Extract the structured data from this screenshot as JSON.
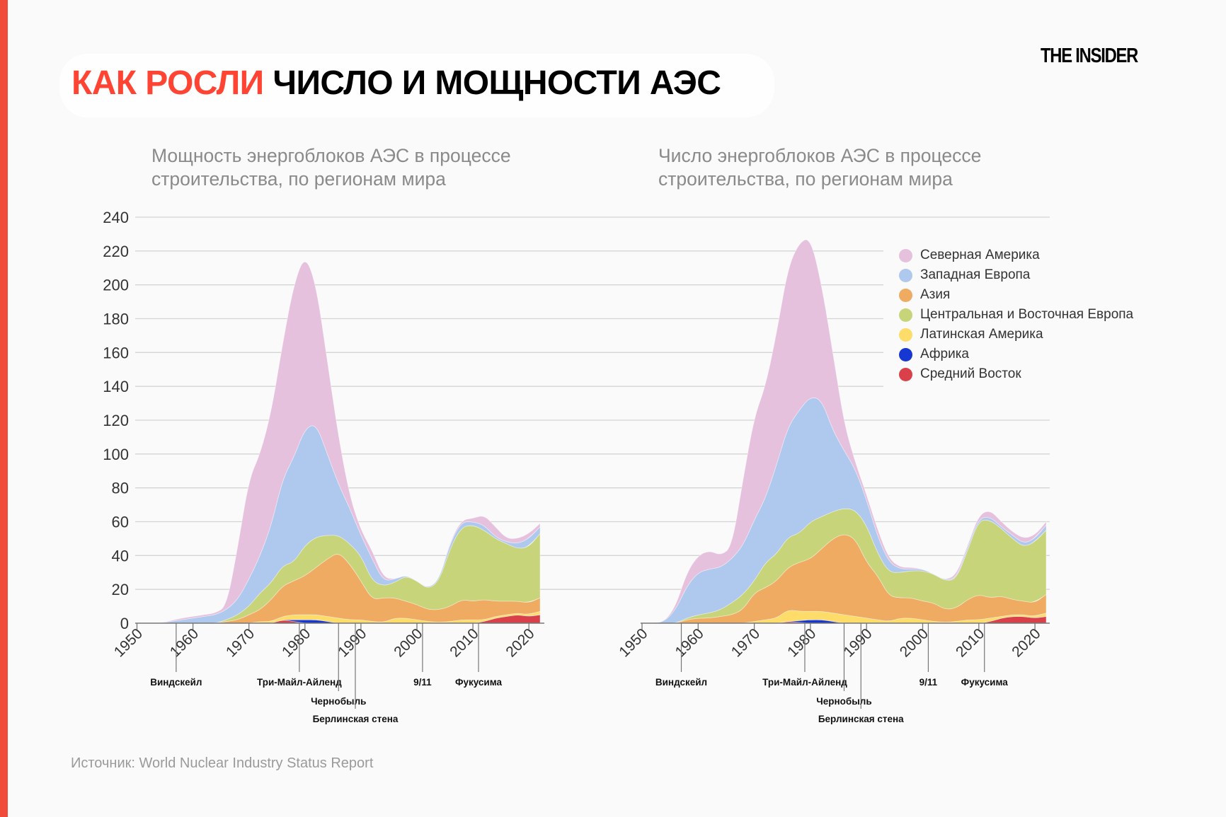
{
  "header": {
    "title_accent": "КАК РОСЛИ",
    "title_rest": "ЧИСЛО И МОЩНОСТИ АЭС",
    "logo": "THE INSIDER",
    "accent_color": "#ff4433"
  },
  "source": "Источник: World Nuclear Industry Status Report",
  "legend": {
    "items": [
      {
        "name": "Северная Америка",
        "color": "#e5c1dd"
      },
      {
        "name": "Западная Европа",
        "color": "#afc8ee"
      },
      {
        "name": "Азия",
        "color": "#f0ab62"
      },
      {
        "name": "Центральная и Восточная Европа",
        "color": "#c8d47a"
      },
      {
        "name": "Латинская Америка",
        "color": "#fddc6a"
      },
      {
        "name": "Африка",
        "color": "#1637d2"
      },
      {
        "name": "Средний Восток",
        "color": "#d9404a"
      }
    ]
  },
  "chart_data": [
    {
      "type": "area",
      "stacked": true,
      "title": "Мощность энергоблоков АЭС в процессе строительства, по регионам мира",
      "ylim": [
        0,
        240
      ],
      "yticks": [
        0,
        20,
        40,
        60,
        80,
        100,
        120,
        140,
        160,
        180,
        200,
        220,
        240
      ],
      "xticks": [
        1950,
        1960,
        1970,
        1980,
        1990,
        2000,
        2010,
        2020
      ],
      "grid": true,
      "legend_position": "right",
      "events": [
        {
          "year": 1957,
          "label": "Виндскейл",
          "row": 0
        },
        {
          "year": 1979,
          "label": "Три-Майл-Айленд",
          "row": 0
        },
        {
          "year": 1986,
          "label": "Чернобыль",
          "row": 1
        },
        {
          "year": 1989,
          "label": "Берлинская стена",
          "row": 2
        },
        {
          "year": 2001,
          "label": "9/11",
          "row": 0
        },
        {
          "year": 2011,
          "label": "Фукусима",
          "row": 0
        }
      ],
      "x": [
        1950,
        1952,
        1954,
        1956,
        1958,
        1960,
        1962,
        1964,
        1966,
        1968,
        1970,
        1972,
        1974,
        1976,
        1978,
        1980,
        1982,
        1984,
        1986,
        1988,
        1990,
        1992,
        1994,
        1996,
        1998,
        2000,
        2002,
        2004,
        2006,
        2008,
        2010,
        2012,
        2014,
        2016,
        2018,
        2020,
        2022
      ],
      "series": [
        {
          "name": "Средний Восток",
          "color": "#d9404a",
          "values": [
            0,
            0,
            0,
            0,
            0,
            0,
            0,
            0,
            0,
            0,
            0,
            0,
            0,
            2,
            1,
            0,
            0,
            0,
            0,
            0,
            0,
            0,
            0,
            0,
            0,
            0,
            0,
            0,
            0,
            0,
            0,
            1,
            3,
            4,
            5,
            4,
            5
          ]
        },
        {
          "name": "Африка",
          "color": "#1637d2",
          "values": [
            0,
            0,
            0,
            0,
            0,
            0,
            0,
            0,
            0,
            0,
            0,
            0,
            0,
            0,
            1,
            2,
            2,
            1,
            0,
            0,
            0,
            0,
            0,
            0,
            0,
            0,
            0,
            0,
            0,
            0,
            0,
            0,
            0,
            0,
            0,
            0,
            0
          ]
        },
        {
          "name": "Латинская Америка",
          "color": "#fddc6a",
          "values": [
            0,
            0,
            0,
            0,
            0,
            0,
            0,
            0,
            0,
            0,
            0,
            1,
            1,
            2,
            3,
            3,
            3,
            3,
            3,
            2,
            2,
            1,
            0.5,
            3,
            3,
            2,
            1,
            0.5,
            1,
            2,
            2,
            1,
            1,
            1,
            1,
            1,
            2
          ]
        },
        {
          "name": "Азия",
          "color": "#f0ab62",
          "values": [
            0,
            0,
            0,
            0,
            0,
            0,
            0,
            0,
            1,
            2,
            5,
            7,
            13,
            18,
            20,
            23,
            28,
            34,
            39,
            33,
            23,
            13,
            14.5,
            12,
            10,
            9,
            7,
            7.5,
            9,
            12,
            11,
            12,
            9,
            8,
            7,
            7,
            8
          ]
        },
        {
          "name": "Центральная и Восточная Европа",
          "color": "#c8d47a",
          "values": [
            0,
            0,
            0,
            0,
            0,
            0,
            0,
            0,
            1,
            3,
            5,
            10,
            10,
            12,
            11,
            18,
            18,
            14,
            10,
            12,
            15,
            11,
            7,
            9,
            15,
            14,
            12,
            17,
            35,
            43,
            45,
            41,
            37,
            34,
            31,
            33,
            38
          ]
        },
        {
          "name": "Западная Европа",
          "color": "#afc8ee",
          "values": [
            0,
            0,
            0,
            1,
            2,
            3,
            4,
            5,
            6,
            9,
            16,
            22,
            34,
            51,
            62,
            69,
            67,
            48,
            30,
            21,
            12,
            13,
            3,
            2,
            0.5,
            0,
            0.5,
            1,
            3,
            3,
            2,
            3,
            1,
            1,
            3,
            5,
            4
          ]
        },
        {
          "name": "Северная Америка",
          "color": "#e5c1dd",
          "values": [
            0,
            0,
            0,
            0.5,
            1,
            1,
            1,
            1,
            2,
            31,
            59,
            60,
            67,
            80,
            102,
            103,
            82,
            55,
            28,
            7,
            3,
            5,
            2,
            0,
            0,
            0,
            0,
            0,
            1,
            1,
            2,
            6,
            6,
            2,
            3,
            3,
            2
          ]
        }
      ]
    },
    {
      "type": "area",
      "stacked": true,
      "title": "Число энергоблоков АЭС в процессе строительства, по регионам мира",
      "ylim": [
        0,
        240
      ],
      "yticks": [
        0,
        20,
        40,
        60,
        80,
        100,
        120,
        140,
        160,
        180,
        200,
        220,
        240
      ],
      "xticks": [
        1950,
        1960,
        1970,
        1980,
        1990,
        2000,
        2010,
        2020
      ],
      "grid": true,
      "legend_position": "top-right",
      "events": [
        {
          "year": 1957,
          "label": "Виндскейл",
          "row": 0
        },
        {
          "year": 1979,
          "label": "Три-Майл-Айленд",
          "row": 0
        },
        {
          "year": 1986,
          "label": "Чернобыль",
          "row": 1
        },
        {
          "year": 1989,
          "label": "Берлинская стена",
          "row": 2
        },
        {
          "year": 2001,
          "label": "9/11",
          "row": 0
        },
        {
          "year": 2011,
          "label": "Фукусима",
          "row": 0
        }
      ],
      "x": [
        1950,
        1952,
        1954,
        1956,
        1958,
        1960,
        1962,
        1964,
        1966,
        1968,
        1970,
        1972,
        1974,
        1976,
        1978,
        1980,
        1982,
        1984,
        1986,
        1988,
        1990,
        1992,
        1994,
        1996,
        1998,
        2000,
        2002,
        2004,
        2006,
        2008,
        2010,
        2012,
        2014,
        2016,
        2018,
        2020,
        2022
      ],
      "series": [
        {
          "name": "Средний Восток",
          "color": "#d9404a",
          "values": [
            0,
            0,
            0,
            0,
            0,
            0,
            0,
            0,
            0,
            0,
            0,
            0,
            0,
            1,
            0.5,
            0,
            0,
            0,
            0,
            0,
            0,
            0,
            0,
            0,
            0,
            0,
            0,
            0,
            0,
            0,
            0,
            1,
            3,
            4,
            4,
            3,
            4
          ]
        },
        {
          "name": "Африка",
          "color": "#1637d2",
          "values": [
            0,
            0,
            0,
            0,
            0,
            0,
            0,
            0,
            0,
            0,
            0,
            0,
            0,
            0,
            1,
            2,
            2,
            1,
            0,
            0,
            0,
            0,
            0,
            0,
            0,
            0,
            0,
            0,
            0,
            0,
            0,
            0,
            0,
            0,
            0,
            0,
            0
          ]
        },
        {
          "name": "Латинская Америка",
          "color": "#fddc6a",
          "values": [
            0,
            0,
            0,
            0,
            0,
            0,
            0,
            0,
            0,
            0,
            1,
            2,
            3,
            7,
            5.5,
            5,
            5,
            5,
            5,
            4,
            3,
            2,
            1,
            3,
            3,
            2,
            1,
            0.5,
            1,
            2,
            2,
            2,
            1,
            1,
            1,
            1,
            2
          ]
        },
        {
          "name": "Азия",
          "color": "#f0ab62",
          "values": [
            0,
            0,
            0,
            0,
            2,
            3,
            3,
            4,
            5,
            8,
            17,
            19,
            22,
            25,
            29,
            31,
            37,
            44,
            48,
            46,
            33,
            26,
            15,
            12,
            12,
            11,
            11,
            7.5,
            8,
            12,
            15,
            12,
            12,
            9,
            8,
            8,
            11
          ]
        },
        {
          "name": "Центральная и Восточная Европа",
          "color": "#c8d47a",
          "values": [
            0,
            0,
            0,
            0,
            1,
            2,
            3,
            4,
            7,
            9,
            7,
            15,
            16,
            18,
            17,
            22,
            19,
            16,
            15,
            17,
            22,
            13,
            14,
            15,
            16,
            18,
            17,
            17,
            17,
            29,
            44,
            46,
            40,
            36,
            32,
            36,
            38
          ]
        },
        {
          "name": "Западная Европа",
          "color": "#afc8ee",
          "values": [
            0,
            0,
            1,
            8,
            19,
            25,
            26,
            25,
            26,
            29,
            36,
            38,
            53,
            65,
            73,
            74,
            69,
            48,
            34,
            24,
            15,
            10,
            6,
            2,
            1,
            1,
            0,
            0.5,
            0.5,
            2,
            1,
            2,
            1,
            2,
            2,
            2,
            3
          ]
        },
        {
          "name": "Северная Америка",
          "color": "#e5c1dd",
          "values": [
            0,
            0,
            0,
            2,
            8,
            10,
            11,
            7,
            7,
            39,
            61,
            66,
            78,
            94,
            99,
            94,
            68,
            46,
            16,
            4,
            3,
            4,
            2,
            1,
            1,
            0,
            0,
            0,
            2,
            1,
            2,
            4,
            3,
            2,
            3,
            2,
            2
          ]
        }
      ]
    }
  ]
}
